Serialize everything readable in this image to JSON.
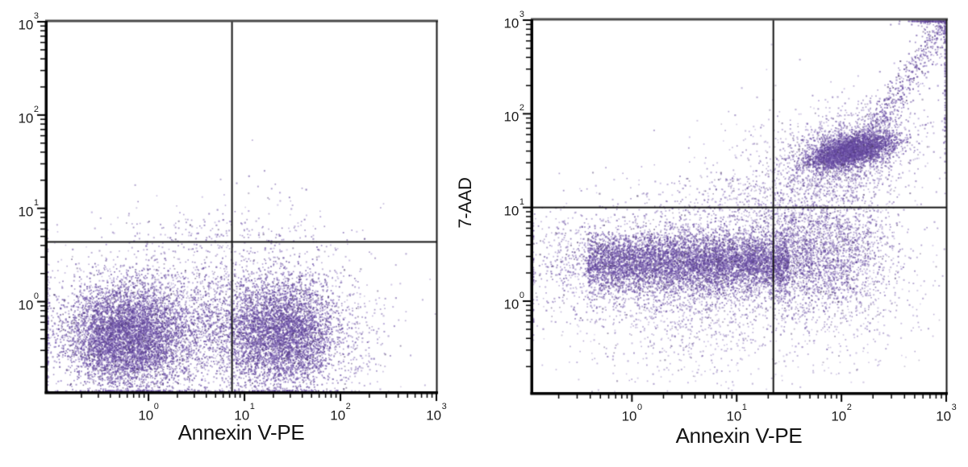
{
  "background": "#ffffff",
  "palette": {
    "dot_colors": [
      "#6a4fa4",
      "#5a3d96",
      "#8a72c0",
      "#4d3a6b"
    ],
    "axis_color": "#000000",
    "frame_top_color": "#4a4a4a",
    "gate_line_color": "#151515",
    "tick_text_color": "#1b1b1b"
  },
  "chart_data": [
    {
      "type": "scatter",
      "plot": "left-panel",
      "title": "",
      "xlabel": "Annexin V-PE",
      "ylabel": "",
      "x_scale": "log",
      "y_scale": "log",
      "x_range": [
        0.1,
        1000
      ],
      "y_range": [
        0.1,
        1000
      ],
      "x_log_range": [
        -1.06,
        3.0
      ],
      "y_log_range": [
        -0.97,
        3.0
      ],
      "x_ticks": [
        {
          "base": "10",
          "exp": "0",
          "log": 0
        },
        {
          "base": "10",
          "exp": "1",
          "log": 1
        },
        {
          "base": "10",
          "exp": "2",
          "log": 2
        },
        {
          "base": "10",
          "exp": "3",
          "log": 3
        }
      ],
      "y_ticks": [
        {
          "base": "10",
          "exp": "0",
          "log": 0
        },
        {
          "base": "10",
          "exp": "1",
          "log": 1
        },
        {
          "base": "10",
          "exp": "2",
          "log": 2
        },
        {
          "base": "10",
          "exp": "3",
          "log": 3
        }
      ],
      "quadrant_gate": {
        "x_log": 0.87,
        "y_log": 0.64
      },
      "grid": false,
      "legend": false,
      "seed": 42,
      "clusters": [
        {
          "name": "viable-low-annexin",
          "n": 5200,
          "xc": -0.28,
          "xs": 0.3,
          "yc": -0.38,
          "ys": 0.28,
          "clamp": true
        },
        {
          "name": "annexin-positive-blob",
          "n": 4200,
          "xc": 1.42,
          "xs": 0.27,
          "yc": -0.33,
          "ys": 0.3,
          "clamp": true
        },
        {
          "name": "bridge-between-blobs",
          "n": 1600,
          "xmin": -0.1,
          "xmax": 1.15,
          "yc": -0.3,
          "ys": 0.33,
          "clamp": true
        },
        {
          "name": "diffuse-halo",
          "n": 1500,
          "xc": 0.5,
          "xs": 0.85,
          "yc": -0.15,
          "ys": 0.5,
          "alpha": 0.55,
          "clamp": true
        },
        {
          "name": "right-tail",
          "n": 220,
          "xc": 2.15,
          "xs": 0.22,
          "yc": -0.35,
          "ys": 0.4,
          "alpha": 0.6
        },
        {
          "name": "above-gate-right-sparse",
          "n": 120,
          "xc": 1.0,
          "xs": 0.55,
          "yc": 0.7,
          "ys": 0.12,
          "alpha": 0.7
        },
        {
          "name": "above-gate-left-sparse",
          "n": 25,
          "xc": 0.35,
          "xs": 0.35,
          "yc": 0.72,
          "ys": 0.1,
          "alpha": 0.7
        },
        {
          "name": "upper-outliers",
          "n": 18,
          "xc": 1.3,
          "xs": 0.35,
          "yc": 1.15,
          "ys": 0.25,
          "alpha": 0.75
        }
      ]
    },
    {
      "type": "scatter",
      "plot": "right-panel",
      "title": "",
      "xlabel": "Annexin V-PE",
      "ylabel": "7-AAD",
      "x_scale": "log",
      "y_scale": "log",
      "x_range": [
        0.1,
        1000
      ],
      "y_range": [
        0.1,
        1000
      ],
      "x_log_range": [
        -0.95,
        3.0
      ],
      "y_log_range": [
        -0.98,
        3.0
      ],
      "x_ticks": [
        {
          "base": "10",
          "exp": "0",
          "log": 0
        },
        {
          "base": "10",
          "exp": "1",
          "log": 1
        },
        {
          "base": "10",
          "exp": "2",
          "log": 2
        },
        {
          "base": "10",
          "exp": "3",
          "log": 3
        }
      ],
      "y_ticks": [
        {
          "base": "10",
          "exp": "0",
          "log": 0
        },
        {
          "base": "10",
          "exp": "1",
          "log": 1
        },
        {
          "base": "10",
          "exp": "2",
          "log": 2
        },
        {
          "base": "10",
          "exp": "3",
          "log": 3
        }
      ],
      "quadrant_gate": {
        "x_log": 1.35,
        "y_log": 1.0
      },
      "grid": false,
      "legend": false,
      "seed": 7,
      "clusters": [
        {
          "name": "live-band-core",
          "n": 5200,
          "xmin": -0.42,
          "xmax": 1.5,
          "yc": 0.41,
          "ys": 0.15,
          "clamp": true
        },
        {
          "name": "live-band-halo",
          "n": 2600,
          "xc": 0.5,
          "xs": 0.62,
          "yc": 0.38,
          "ys": 0.33,
          "alpha": 0.6,
          "clamp": true
        },
        {
          "name": "band-extension-right",
          "n": 2000,
          "xc": 1.75,
          "xs": 0.35,
          "yc": 0.5,
          "ys": 0.3,
          "alpha": 0.7
        },
        {
          "name": "band-under-tail",
          "n": 700,
          "xc": 0.6,
          "xs": 0.6,
          "yc": -0.2,
          "ys": 0.4,
          "alpha": 0.5
        },
        {
          "name": "left-tail",
          "n": 260,
          "xc": -0.58,
          "xs": 0.22,
          "yc": 0.36,
          "ys": 0.28,
          "alpha": 0.65,
          "clamp": true
        },
        {
          "name": "dead-cluster-core",
          "n": 3000,
          "xc": 2.08,
          "xs": 0.2,
          "yc": 1.6,
          "ys": 0.09,
          "rho": 0.5
        },
        {
          "name": "dead-cluster-halo",
          "n": 1800,
          "xc": 2.05,
          "xs": 0.33,
          "yc": 1.58,
          "ys": 0.25,
          "rho": 0.35,
          "alpha": 0.6
        },
        {
          "name": "necrotic-stream-diagonal",
          "n": 550,
          "line": true,
          "x0": 2.2,
          "x1": 3.04,
          "slope": 1.6,
          "offset": -1.85,
          "jitter": 0.13,
          "clamp": true
        },
        {
          "name": "top-corner-pileup",
          "n": 240,
          "xc": 2.88,
          "xs": 0.12,
          "yc": 3.06,
          "ys": 0.09,
          "clamp": true
        },
        {
          "name": "right-edge-pileup",
          "n": 90,
          "xc": 3.04,
          "xs": 0.07,
          "yc": 2.3,
          "ys": 0.45,
          "alpha": 0.7,
          "clamp": true
        },
        {
          "name": "transition-scatter",
          "n": 1000,
          "xc": 1.55,
          "xs": 0.5,
          "yc": 0.95,
          "ys": 0.5,
          "alpha": 0.5
        },
        {
          "name": "below-dead-scatter",
          "n": 700,
          "xc": 2.0,
          "xs": 0.38,
          "yc": 0.25,
          "ys": 0.5,
          "alpha": 0.5
        },
        {
          "name": "upper-left-sparse",
          "n": 140,
          "xc": 0.9,
          "xs": 0.4,
          "yc": 1.14,
          "ys": 0.15,
          "alpha": 0.6
        }
      ]
    }
  ]
}
